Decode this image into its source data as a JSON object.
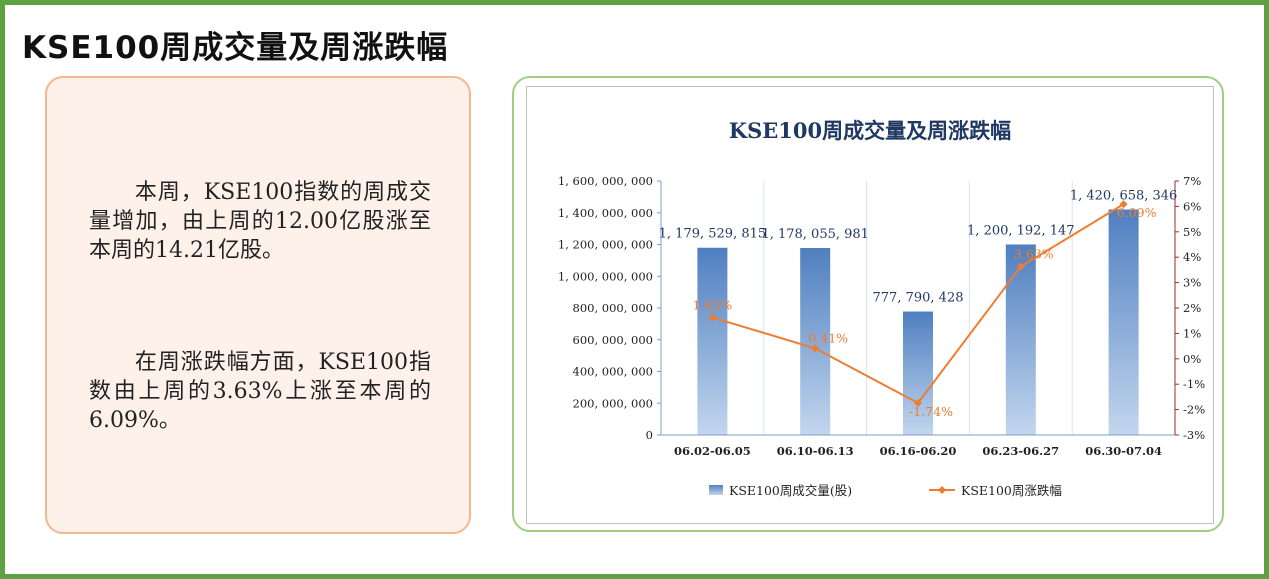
{
  "page": {
    "title": "KSE100周成交量及周涨跌幅"
  },
  "summary": {
    "paragraph1": "本周，KSE100指数的周成交量增加，由上周的12.00亿股涨至本周的14.21亿股。",
    "paragraph2": "在周涨跌幅方面，KSE100指数由上周的3.63%上涨至本周的6.09%。"
  },
  "chart_data": {
    "type": "bar",
    "title": "KSE100周成交量及周涨跌幅",
    "categories": [
      "06.02-06.05",
      "06.10-06.13",
      "06.16-06.20",
      "06.23-06.27",
      "06.30-07.04"
    ],
    "series": [
      {
        "name": "KSE100周成交量(股)",
        "type": "bar",
        "axis": "left",
        "values": [
          1179529815,
          1178055981,
          777790428,
          1200192147,
          1420658346
        ],
        "labels": [
          "1, 179, 529, 815",
          "1, 178, 055, 981",
          "777, 790, 428",
          "1, 200, 192, 147",
          "1, 420, 658, 346"
        ],
        "color": "#5b8fcc"
      },
      {
        "name": "KSE100周涨跌幅",
        "type": "line",
        "axis": "right",
        "values": [
          1.63,
          0.41,
          -1.74,
          3.63,
          6.09
        ],
        "labels": [
          "1.63%",
          "0.41%",
          "-1.74%",
          "3.63%",
          "6.09%"
        ],
        "color": "#ed7d31"
      }
    ],
    "y_left": {
      "range": [
        0,
        1600000000
      ],
      "ticks": [
        "0",
        "200, 000, 000",
        "400, 000, 000",
        "600, 000, 000",
        "800, 000, 000",
        "1, 000, 000, 000",
        "1, 200, 000, 000",
        "1, 400, 000, 000",
        "1, 600, 000, 000"
      ]
    },
    "y_right": {
      "range": [
        -3,
        7
      ],
      "ticks": [
        "-3%",
        "-2%",
        "-1%",
        "0%",
        "1%",
        "2%",
        "3%",
        "4%",
        "5%",
        "6%",
        "7%"
      ]
    },
    "legend_position": "bottom",
    "grid": "vertical category separators"
  }
}
